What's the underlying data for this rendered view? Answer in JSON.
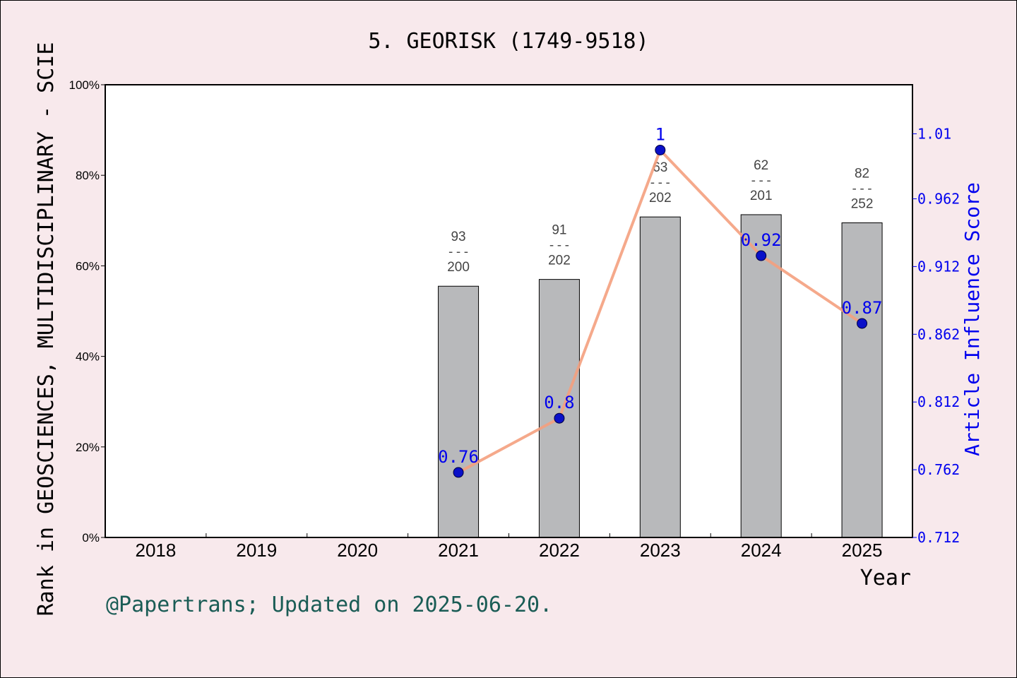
{
  "chart_data": {
    "type": "bar",
    "title": "5. GEORISK (1749-9518)",
    "xlabel": "Year",
    "ylabel": "Rank in GEOSCIENCES, MULTIDISCIPLINARY - SCIE",
    "y2label": "Article Influence Score",
    "footer": "@Papertrans; Updated on 2025-06-20.",
    "categories": [
      "2018",
      "2019",
      "2020",
      "2021",
      "2022",
      "2023",
      "2024",
      "2025"
    ],
    "ylim": [
      0,
      100
    ],
    "yticks": [
      "0%",
      "20%",
      "40%",
      "60%",
      "80%",
      "100%"
    ],
    "y2lim": [
      0.712,
      1.0462
    ],
    "y2ticks": [
      "0.712",
      "0.762",
      "0.812",
      "0.862",
      "0.912",
      "0.962",
      "1.01"
    ],
    "rank_bars": [
      {
        "year": "2021",
        "percent": 55.5,
        "rank": "93",
        "total": "200"
      },
      {
        "year": "2022",
        "percent": 57.0,
        "rank": "91",
        "total": "202"
      },
      {
        "year": "2023",
        "percent": 70.8,
        "rank": "63",
        "total": "202"
      },
      {
        "year": "2024",
        "percent": 71.3,
        "rank": "62",
        "total": "201"
      },
      {
        "year": "2025",
        "percent": 69.5,
        "rank": "82",
        "total": "252"
      }
    ],
    "fraction_separator": "---",
    "ais_line": [
      {
        "year": "2021",
        "value": 0.76,
        "label": "0.76"
      },
      {
        "year": "2022",
        "value": 0.8,
        "label": "0.8"
      },
      {
        "year": "2023",
        "value": 0.998,
        "label": "1"
      },
      {
        "year": "2024",
        "value": 0.92,
        "label": "0.92"
      },
      {
        "year": "2025",
        "value": 0.87,
        "label": "0.87"
      }
    ],
    "grid": false,
    "colors": {
      "background": "#f8e9ec",
      "plot_bg": "#ffffff",
      "bar": "#b8b9bb",
      "line": "#f4a07e",
      "marker": "#0a10c8",
      "right_axis": "#0000ee",
      "footer": "#1a5c55"
    }
  }
}
